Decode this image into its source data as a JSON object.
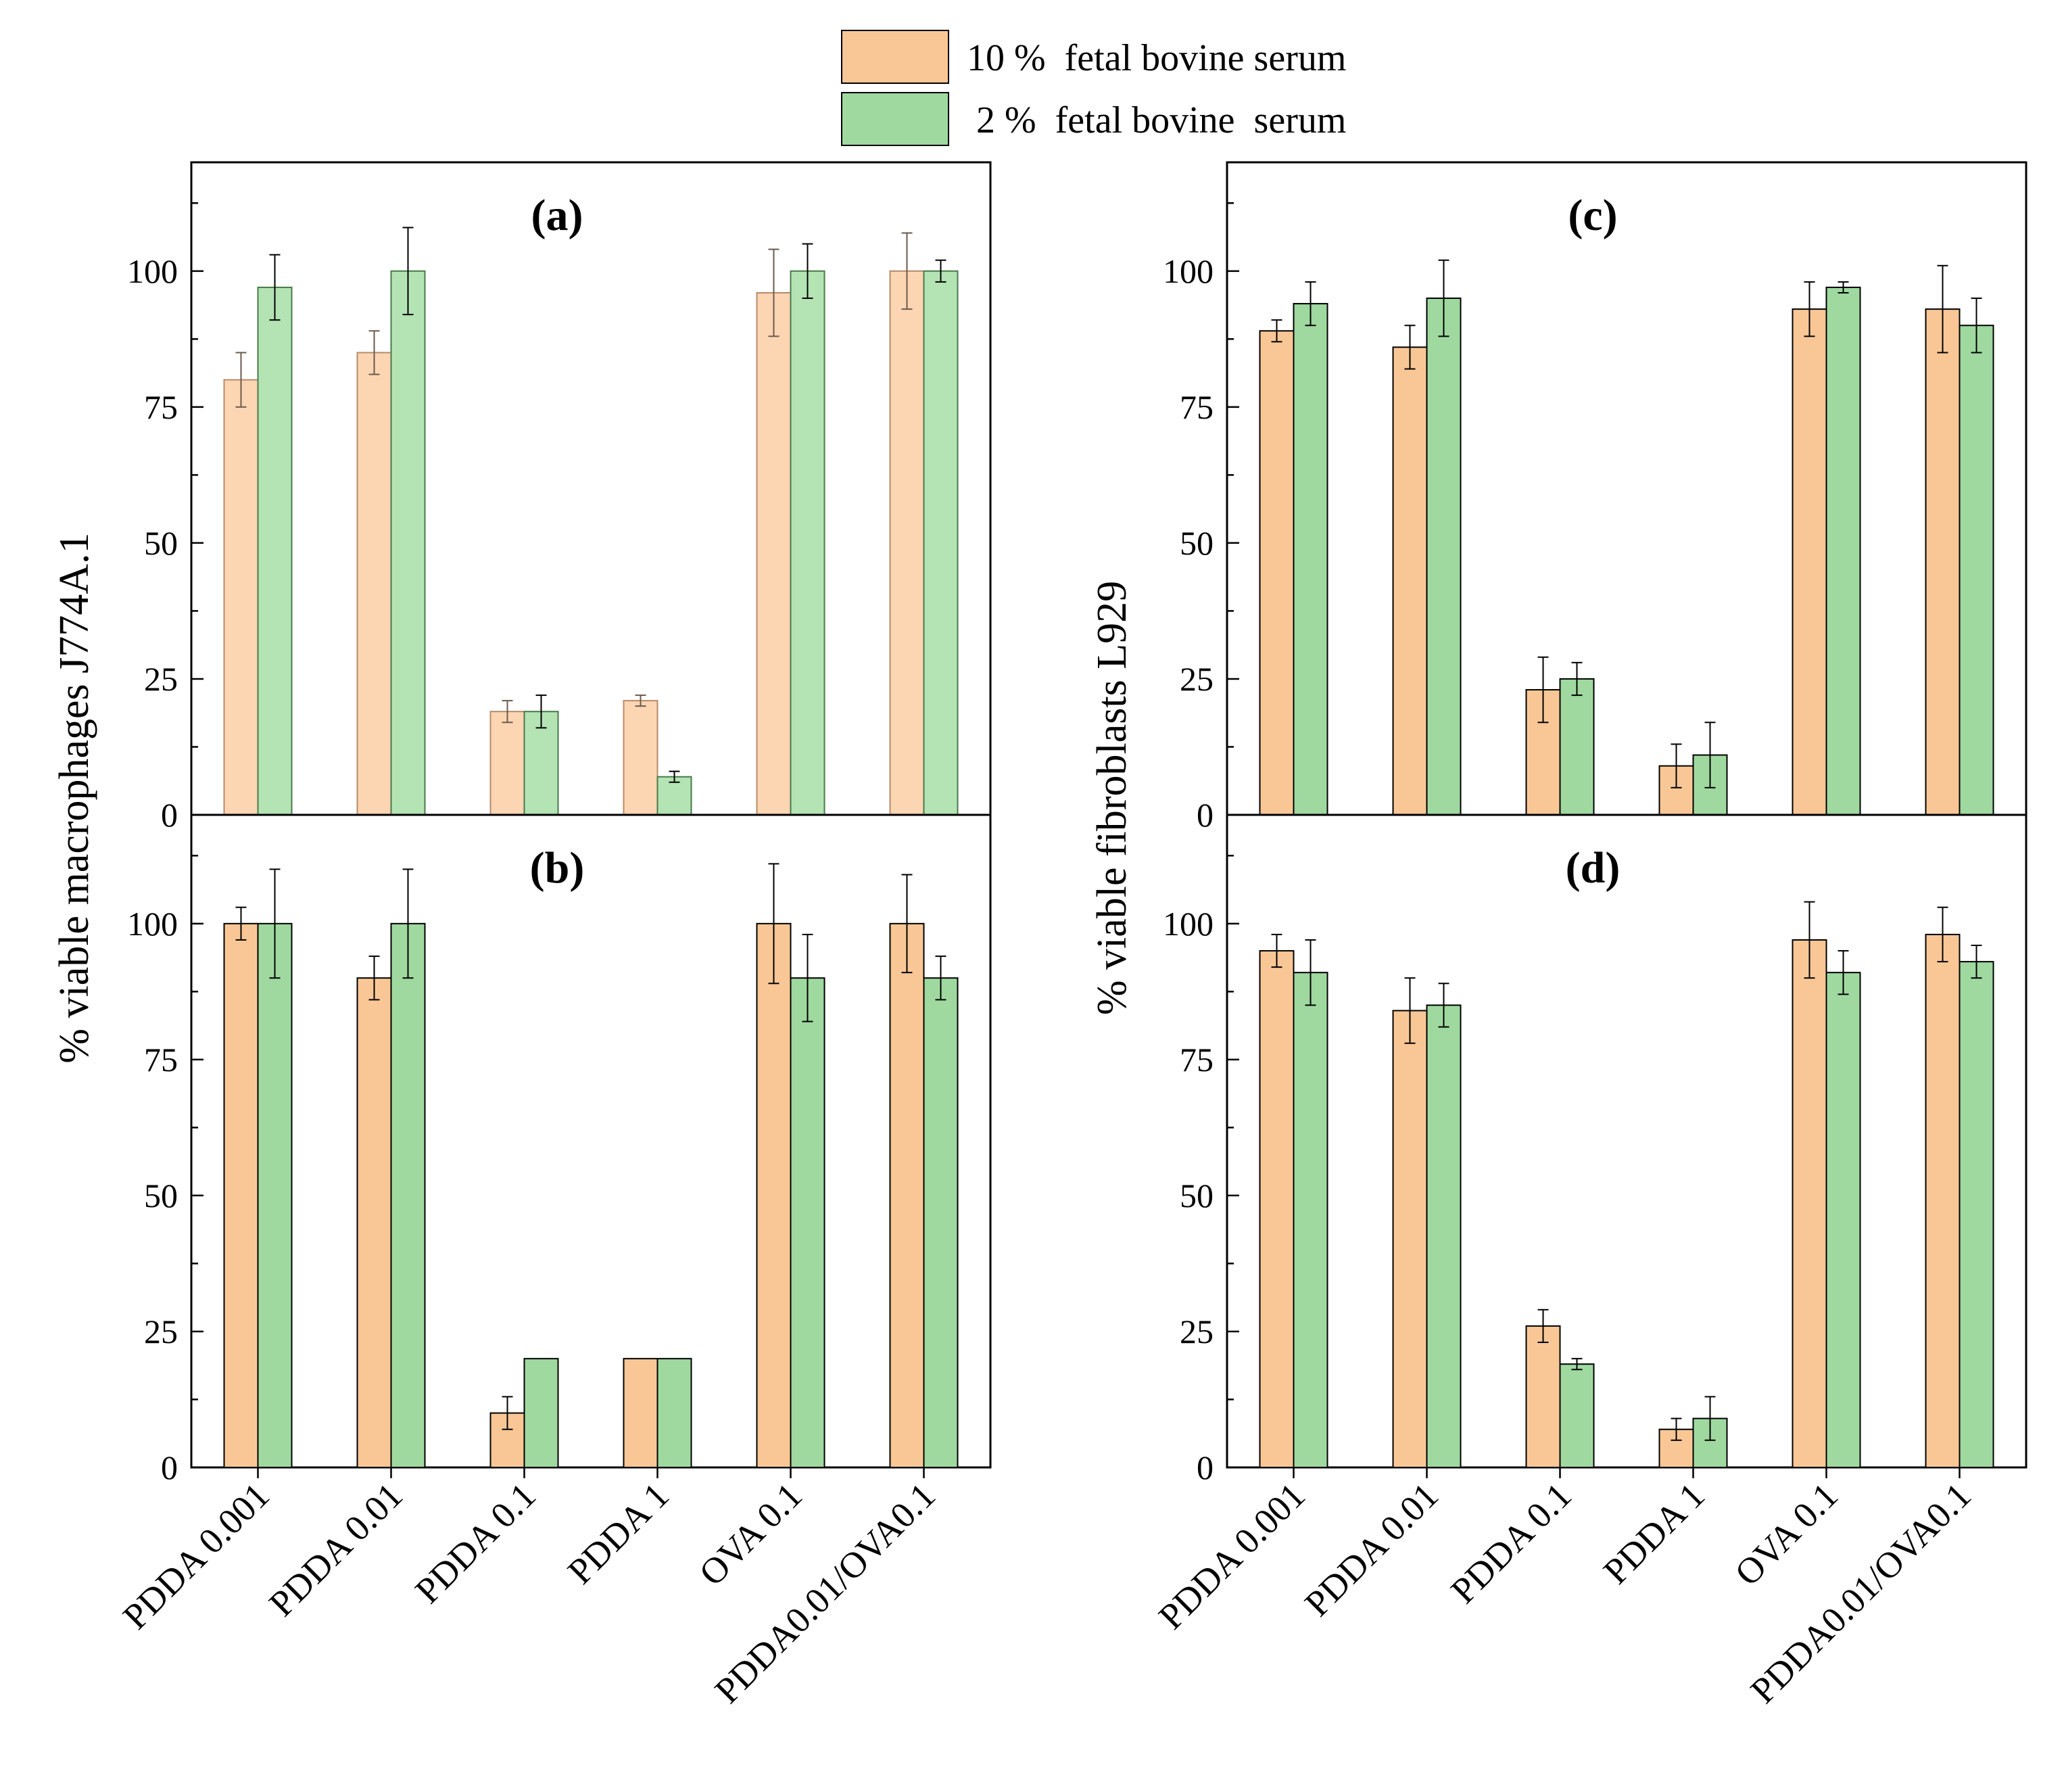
{
  "legend": [
    {
      "label": "10 %  fetal bovine serum",
      "color": "#f9c796"
    },
    {
      "label": " 2 %  fetal bovine  serum",
      "color": "#9fd9a0"
    }
  ],
  "colors": {
    "series10": "#f9c796",
    "series2": "#9fd9a0",
    "series10_faded": "#fcd5b3",
    "series2_faded": "#b4e3b4"
  },
  "figure": {
    "left_ylabel": "% viable macrophages J774A.1",
    "right_ylabel": "% viable fibroblasts L929"
  },
  "chart_data": [
    {
      "id": "a",
      "type": "bar",
      "title": "(a)",
      "categories": [
        "PDDA 0.001",
        "PDDA 0.01",
        "PDDA 0.1",
        "PDDA 1",
        "OVA 0.1",
        "PDDA0.01/OVA0.1"
      ],
      "ylim": [
        0,
        120
      ],
      "yticks": [
        0,
        25,
        50,
        75,
        100
      ],
      "series": [
        {
          "name": "10 %  fetal bovine serum",
          "values": [
            80,
            85,
            19,
            21,
            96,
            100
          ],
          "errors": [
            5,
            4,
            2,
            1,
            8,
            7
          ]
        },
        {
          "name": "2 %  fetal bovine  serum",
          "values": [
            97,
            100,
            19,
            7,
            100,
            100
          ],
          "errors": [
            6,
            8,
            3,
            1,
            5,
            2
          ]
        }
      ]
    },
    {
      "id": "b",
      "type": "bar",
      "title": "(b)",
      "categories": [
        "PDDA 0.001",
        "PDDA 0.01",
        "PDDA 0.1",
        "PDDA 1",
        "OVA 0.1",
        "PDDA0.01/OVA0.1"
      ],
      "ylim": [
        0,
        120
      ],
      "yticks": [
        0,
        25,
        50,
        75,
        100
      ],
      "series": [
        {
          "name": "10 %  fetal bovine serum",
          "values": [
            100,
            90,
            10,
            20,
            100,
            100
          ],
          "errors": [
            3,
            4,
            3,
            0,
            11,
            9
          ]
        },
        {
          "name": "2 %  fetal bovine  serum",
          "values": [
            100,
            100,
            20,
            20,
            90,
            90
          ],
          "errors": [
            10,
            10,
            0,
            0,
            8,
            4
          ]
        }
      ]
    },
    {
      "id": "c",
      "type": "bar",
      "title": "(c)",
      "categories": [
        "PDDA 0.001",
        "PDDA 0.01",
        "PDDA 0.1",
        "PDDA 1",
        "OVA 0.1",
        "PDDA0.01/OVA0.1"
      ],
      "ylim": [
        0,
        120
      ],
      "yticks": [
        0,
        25,
        50,
        75,
        100
      ],
      "series": [
        {
          "name": "10 %  fetal bovine serum",
          "values": [
            89,
            86,
            23,
            9,
            93,
            93
          ],
          "errors": [
            2,
            4,
            6,
            4,
            5,
            8
          ]
        },
        {
          "name": "2 %  fetal bovine  serum",
          "values": [
            94,
            95,
            25,
            11,
            97,
            90
          ],
          "errors": [
            4,
            7,
            3,
            6,
            1,
            5
          ]
        }
      ]
    },
    {
      "id": "d",
      "type": "bar",
      "title": "(d)",
      "categories": [
        "PDDA 0.001",
        "PDDA 0.01",
        "PDDA 0.1",
        "PDDA 1",
        "OVA 0.1",
        "PDDA0.01/OVA0.1"
      ],
      "ylim": [
        0,
        120
      ],
      "yticks": [
        0,
        25,
        50,
        75,
        100
      ],
      "series": [
        {
          "name": "10 %  fetal bovine serum",
          "values": [
            95,
            84,
            26,
            7,
            97,
            98
          ],
          "errors": [
            3,
            6,
            3,
            2,
            7,
            5
          ]
        },
        {
          "name": "2 %  fetal bovine  serum",
          "values": [
            91,
            85,
            19,
            9,
            91,
            93
          ],
          "errors": [
            6,
            4,
            1,
            4,
            4,
            3
          ]
        }
      ]
    }
  ]
}
